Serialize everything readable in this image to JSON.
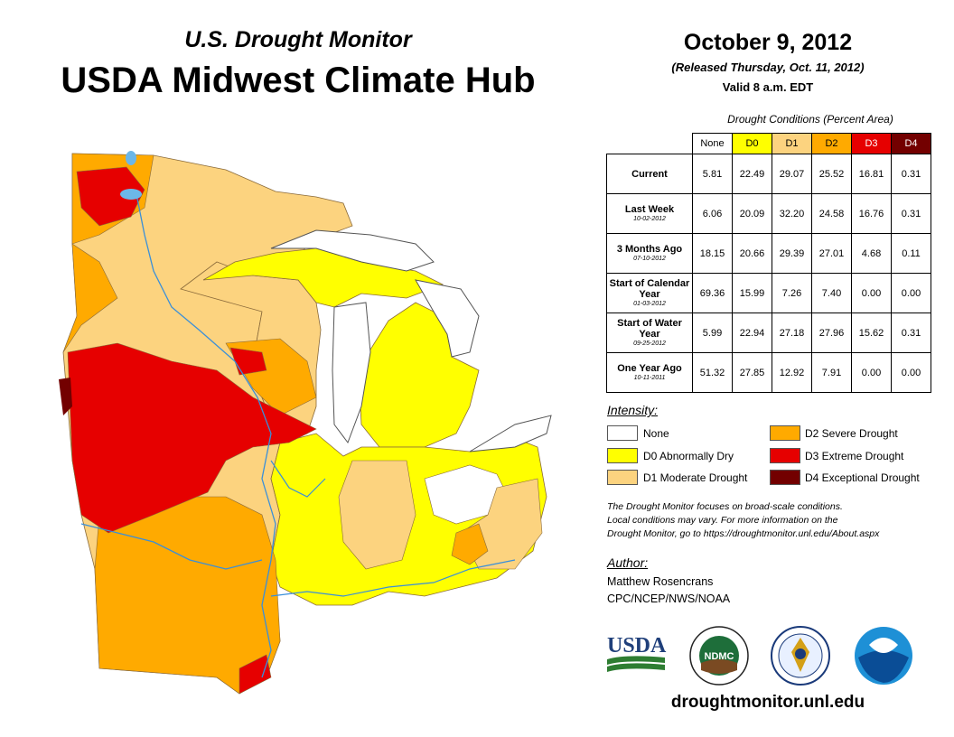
{
  "header": {
    "subtitle": "U.S. Drought Monitor",
    "title": "USDA Midwest Climate Hub"
  },
  "release": {
    "date": "October 9, 2012",
    "released": "(Released Thursday, Oct. 11, 2012)",
    "valid": "Valid 8 a.m. EDT"
  },
  "conditions": {
    "caption": "Drought Conditions (Percent Area)",
    "columns": [
      "None",
      "D0",
      "D1",
      "D2",
      "D3",
      "D4"
    ],
    "column_colors": [
      "#ffffff",
      "#ffff00",
      "#fcd37f",
      "#ffaa00",
      "#e60000",
      "#730000"
    ],
    "rows": [
      {
        "label": "Current",
        "date": "",
        "values": [
          "5.81",
          "22.49",
          "29.07",
          "25.52",
          "16.81",
          "0.31"
        ]
      },
      {
        "label": "Last Week",
        "date": "10-02-2012",
        "values": [
          "6.06",
          "20.09",
          "32.20",
          "24.58",
          "16.76",
          "0.31"
        ]
      },
      {
        "label": "3 Months Ago",
        "date": "07-10-2012",
        "values": [
          "18.15",
          "20.66",
          "29.39",
          "27.01",
          "4.68",
          "0.11"
        ]
      },
      {
        "label": "Start of Calendar Year",
        "date": "01-03-2012",
        "values": [
          "69.36",
          "15.99",
          "7.26",
          "7.40",
          "0.00",
          "0.00"
        ]
      },
      {
        "label": "Start of Water Year",
        "date": "09-25-2012",
        "values": [
          "5.99",
          "22.94",
          "27.18",
          "27.96",
          "15.62",
          "0.31"
        ]
      },
      {
        "label": "One Year Ago",
        "date": "10-11-2011",
        "values": [
          "51.32",
          "27.85",
          "12.92",
          "7.91",
          "0.00",
          "0.00"
        ]
      }
    ]
  },
  "legend": {
    "title": "Intensity:",
    "items": [
      {
        "label": "None",
        "color": "#ffffff"
      },
      {
        "label": "D0 Abnormally Dry",
        "color": "#ffff00"
      },
      {
        "label": "D1 Moderate Drought",
        "color": "#fcd37f"
      },
      {
        "label": "D2 Severe Drought",
        "color": "#ffaa00"
      },
      {
        "label": "D3 Extreme Drought",
        "color": "#e60000"
      },
      {
        "label": "D4 Exceptional Drought",
        "color": "#730000"
      }
    ]
  },
  "note": {
    "line1": "The Drought Monitor focuses on broad-scale conditions.",
    "line2": "Local conditions may vary. For more information on the",
    "line3": "Drought Monitor, go to https://droughtmonitor.unl.edu/About.aspx"
  },
  "author": {
    "title": "Author:",
    "name": "Matthew Rosencrans",
    "org": "CPC/NCEP/NWS/NOAA"
  },
  "logos": {
    "usda": "USDA",
    "ndmc": "NDMC"
  },
  "url": "droughtmonitor.unl.edu"
}
